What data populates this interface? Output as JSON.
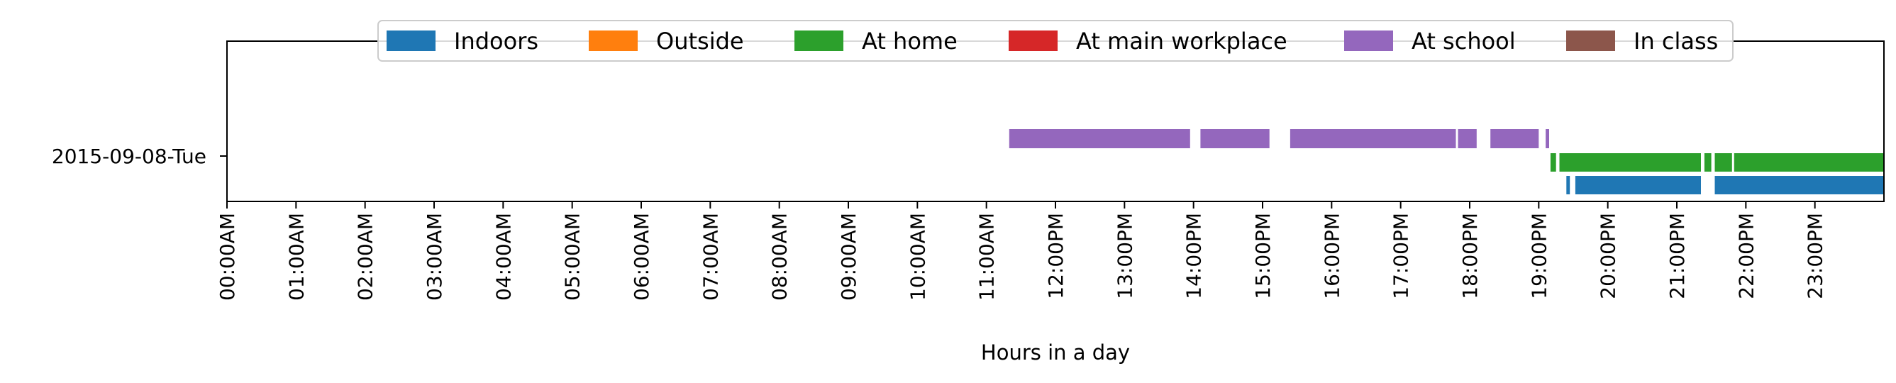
{
  "chart_data": {
    "type": "timeline",
    "xlabel": "Hours in a day",
    "xlim": [
      0,
      24
    ],
    "x_ticks": [
      "00:00AM",
      "01:00AM",
      "02:00AM",
      "03:00AM",
      "04:00AM",
      "05:00AM",
      "06:00AM",
      "07:00AM",
      "08:00AM",
      "09:00AM",
      "10:00AM",
      "11:00AM",
      "12:00PM",
      "13:00PM",
      "14:00PM",
      "15:00PM",
      "16:00PM",
      "17:00PM",
      "18:00PM",
      "19:00PM",
      "20:00PM",
      "21:00PM",
      "22:00PM",
      "23:00PM"
    ],
    "y_category": "2015-09-08-Tue",
    "legend_placement": "top-center",
    "legend": [
      {
        "name": "Indoors",
        "color": "#1f77b4"
      },
      {
        "name": "Outside",
        "color": "#ff7f0e"
      },
      {
        "name": "At home",
        "color": "#2ca02c"
      },
      {
        "name": "At main workplace",
        "color": "#d62728"
      },
      {
        "name": "At school",
        "color": "#9467bd"
      },
      {
        "name": "In class",
        "color": "#8c564b"
      }
    ],
    "series": [
      {
        "label": "At school",
        "color": "#9467bd",
        "lane": "upper",
        "segments": [
          [
            11.33,
            13.95
          ],
          [
            14.1,
            15.1
          ],
          [
            15.4,
            17.8
          ],
          [
            17.83,
            18.1
          ],
          [
            18.3,
            19.0
          ],
          [
            19.1,
            19.15
          ]
        ]
      },
      {
        "label": "At home",
        "color": "#2ca02c",
        "lane": "middle",
        "segments": [
          [
            19.17,
            19.25
          ],
          [
            19.3,
            21.35
          ],
          [
            21.4,
            21.5
          ],
          [
            21.55,
            21.8
          ],
          [
            21.83,
            24.0
          ]
        ]
      },
      {
        "label": "Indoors",
        "color": "#1f77b4",
        "lane": "lower",
        "segments": [
          [
            19.4,
            19.45
          ],
          [
            19.53,
            21.35
          ],
          [
            21.55,
            24.0
          ]
        ]
      }
    ]
  }
}
